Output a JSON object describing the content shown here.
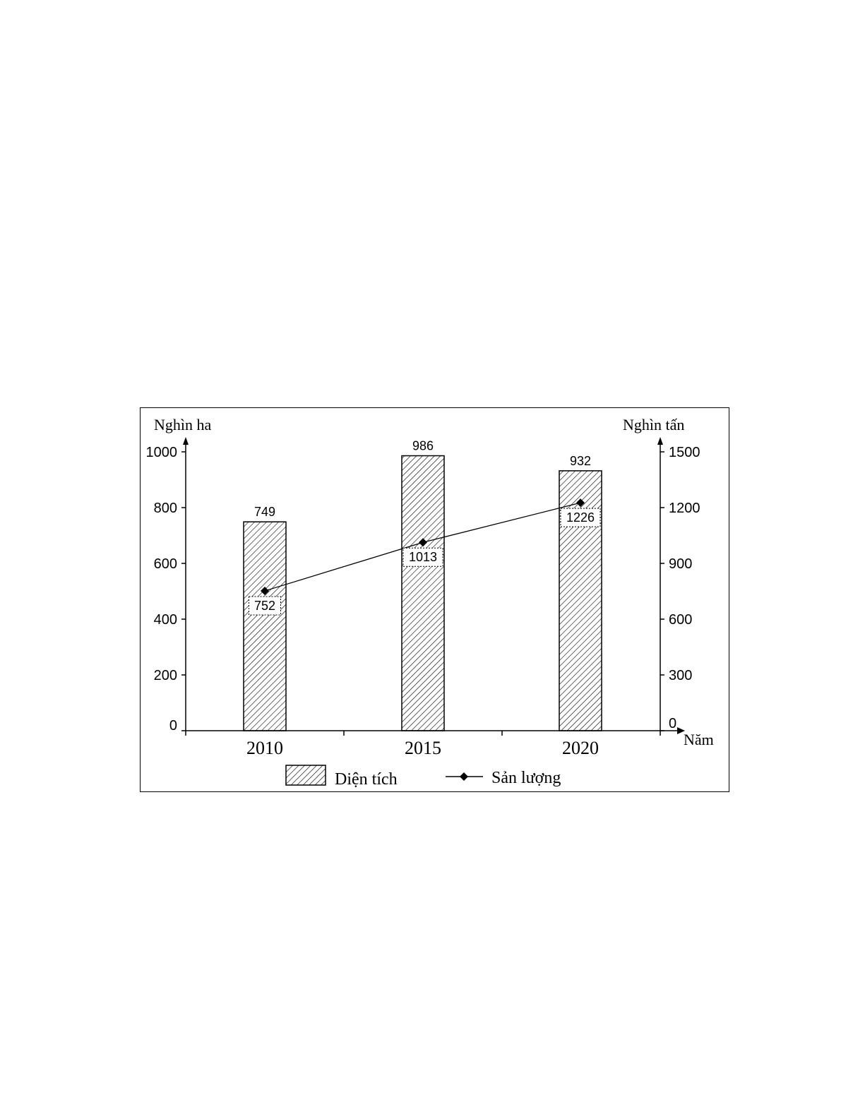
{
  "chart_data": {
    "type": "bar",
    "categories": [
      "2010",
      "2015",
      "2020"
    ],
    "x_axis_label": "Năm",
    "y_left": {
      "label": "Nghìn ha",
      "range": [
        0,
        1000
      ],
      "ticks": [
        "0",
        "200",
        "400",
        "600",
        "800",
        "1000"
      ]
    },
    "y_right": {
      "label": "Nghìn tấn",
      "range": [
        0,
        1500
      ],
      "ticks": [
        "0",
        "300",
        "600",
        "900",
        "1200",
        "1500"
      ]
    },
    "series": [
      {
        "name": "Diện tích",
        "type": "bar",
        "axis": "left",
        "pattern": "diagonal-hatch",
        "values": [
          749,
          986,
          932
        ]
      },
      {
        "name": "Sản lượng",
        "type": "line",
        "axis": "right",
        "marker": "diamond",
        "values": [
          752,
          1013,
          1226
        ]
      }
    ],
    "legend_position": "bottom",
    "grid": false,
    "colors": {
      "stroke": "#000000",
      "background": "#ffffff"
    }
  }
}
